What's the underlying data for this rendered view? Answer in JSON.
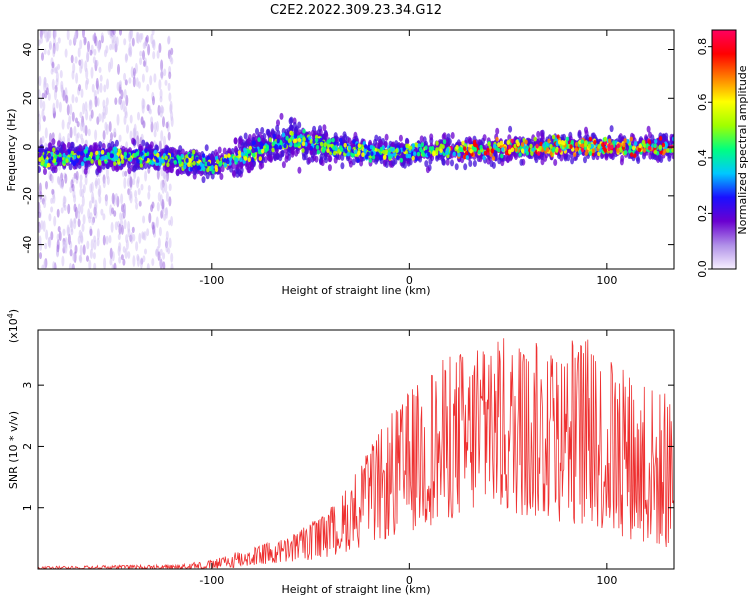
{
  "title": "C2E2.2022.309.23.34.G12",
  "chart_data": [
    {
      "type": "heatmap",
      "xlabel": "Height of straight line (km)",
      "ylabel": "Frequency (Hz)",
      "xlim": [
        -188,
        134
      ],
      "ylim": [
        -50,
        48
      ],
      "x_ticks": [
        -100,
        0,
        100
      ],
      "y_ticks": [
        -40,
        -20,
        0,
        20,
        40
      ],
      "colorbar": {
        "label": "Normalized spectral amplitude",
        "range": [
          0.0,
          0.86
        ],
        "ticks": [
          0.0,
          0.2,
          0.4,
          0.6,
          0.8
        ],
        "colormap": [
          "#f8f0ff",
          "#b090e8",
          "#6a00d0",
          "#1a10ff",
          "#00c8ff",
          "#00ff80",
          "#a0ff00",
          "#ffff00",
          "#ff8000",
          "#ff0000",
          "#ff0060"
        ]
      },
      "features": [
        {
          "name": "main-band",
          "x": [
            -188,
            -130,
            -110,
            -100,
            -90,
            -80,
            -70,
            -60,
            -50,
            -40,
            -30,
            -20,
            -10,
            0,
            20,
            40,
            60,
            80,
            100,
            120,
            134
          ],
          "freq_center": [
            -4,
            -4,
            -6,
            -8,
            -5,
            -2,
            1,
            3,
            2,
            0,
            -1,
            -2,
            -2,
            -2,
            -1,
            -1,
            0,
            0,
            0,
            0,
            0
          ]
        },
        {
          "name": "low-altitude-scatter",
          "x_range": [
            -188,
            -120
          ],
          "freq_range": [
            -50,
            48
          ]
        }
      ]
    },
    {
      "type": "line",
      "xlabel": "Height of straight line (km)",
      "ylabel": "SNR (10 * v/v)",
      "y_multiplier": "(x10^4)",
      "y_multiplier_base": "(x10",
      "y_multiplier_exp": "4",
      "y_multiplier_close": ")",
      "xlim": [
        -188,
        134
      ],
      "ylim": [
        0,
        3.9
      ],
      "x_ticks": [
        -100,
        0,
        100
      ],
      "y_ticks": [
        1,
        2,
        3
      ],
      "color": "#ee3030",
      "envelope": {
        "x": [
          -188,
          -150,
          -120,
          -100,
          -90,
          -80,
          -70,
          -60,
          -50,
          -40,
          -30,
          -20,
          -10,
          0,
          10,
          20,
          30,
          40,
          50,
          60,
          70,
          80,
          90,
          100,
          110,
          120,
          134
        ],
        "upper": [
          0.04,
          0.06,
          0.07,
          0.14,
          0.25,
          0.38,
          0.45,
          0.55,
          0.75,
          1.0,
          1.4,
          2.0,
          2.5,
          2.9,
          3.3,
          3.5,
          3.6,
          3.7,
          3.8,
          3.75,
          3.7,
          3.75,
          3.8,
          3.5,
          3.3,
          3.1,
          2.8
        ],
        "lower": [
          0.0,
          0.0,
          0.0,
          0.0,
          0.02,
          0.05,
          0.08,
          0.1,
          0.15,
          0.2,
          0.3,
          0.4,
          0.5,
          0.6,
          0.7,
          0.8,
          0.9,
          0.95,
          0.9,
          0.85,
          0.8,
          0.75,
          0.7,
          0.6,
          0.5,
          0.4,
          0.3
        ]
      }
    }
  ]
}
